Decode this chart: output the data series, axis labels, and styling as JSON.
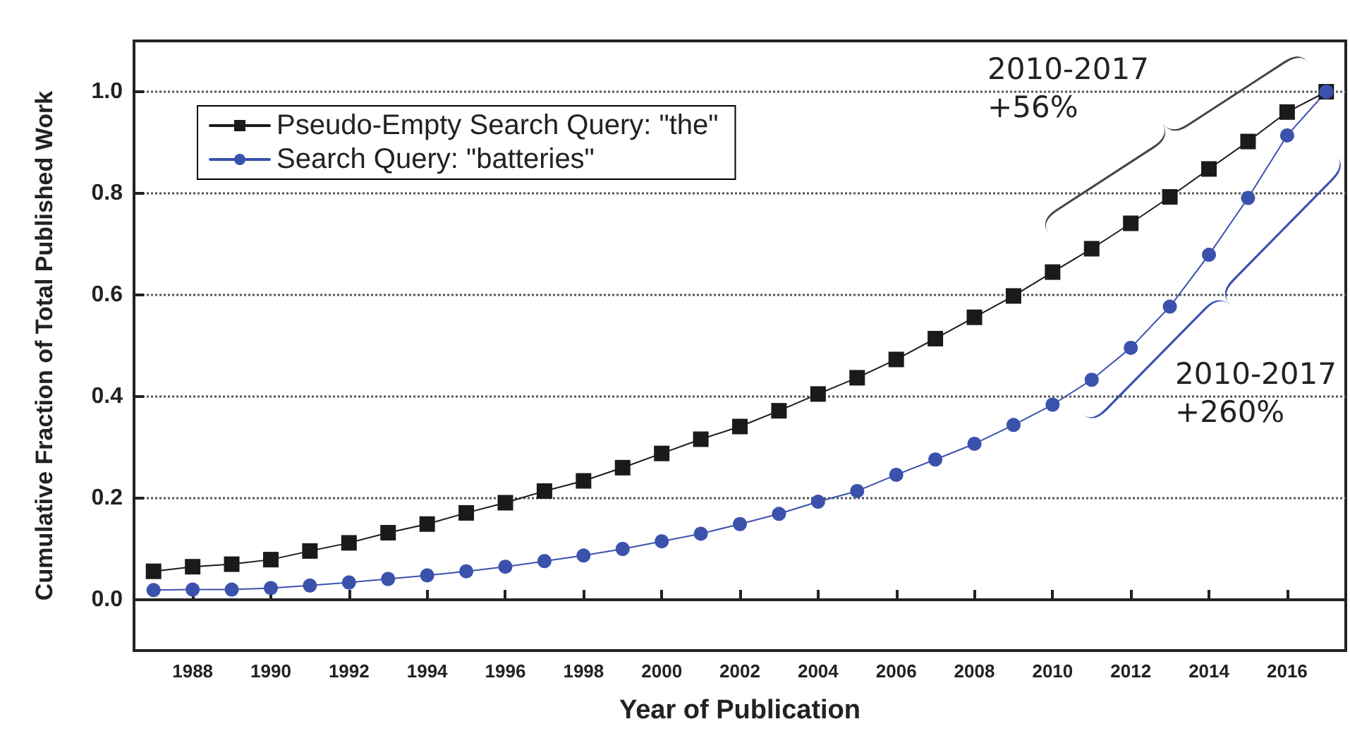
{
  "chart_data": {
    "type": "line",
    "xlabel": "Year of Publication",
    "ylabel": "Cumulative Fraction of Total Published Work",
    "x": [
      1987,
      1988,
      1989,
      1990,
      1991,
      1992,
      1993,
      1994,
      1995,
      1996,
      1997,
      1998,
      1999,
      2000,
      2001,
      2002,
      2003,
      2004,
      2005,
      2006,
      2007,
      2008,
      2009,
      2010,
      2011,
      2012,
      2013,
      2014,
      2015,
      2016,
      2017
    ],
    "series": [
      {
        "name": "Pseudo-Empty Search Query: \"the\"",
        "color": "#1a1a1a",
        "marker": "square",
        "values": [
          0.056,
          0.065,
          0.07,
          0.079,
          0.096,
          0.112,
          0.132,
          0.149,
          0.171,
          0.191,
          0.214,
          0.234,
          0.26,
          0.288,
          0.316,
          0.341,
          0.372,
          0.405,
          0.437,
          0.473,
          0.514,
          0.556,
          0.598,
          0.645,
          0.691,
          0.741,
          0.793,
          0.848,
          0.902,
          0.96,
          1.0
        ]
      },
      {
        "name": "Search Query: \"batteries\"",
        "color": "#3b52ad",
        "marker": "circle",
        "values": [
          0.019,
          0.02,
          0.02,
          0.023,
          0.028,
          0.034,
          0.041,
          0.048,
          0.056,
          0.065,
          0.076,
          0.087,
          0.1,
          0.115,
          0.13,
          0.149,
          0.169,
          0.193,
          0.214,
          0.246,
          0.276,
          0.307,
          0.344,
          0.384,
          0.433,
          0.496,
          0.577,
          0.679,
          0.791,
          0.914,
          1.0
        ]
      }
    ],
    "xlim": [
      1986.5,
      2017.5
    ],
    "xticks": [
      1988,
      1990,
      1992,
      1994,
      1996,
      1998,
      2000,
      2002,
      2004,
      2006,
      2008,
      2010,
      2012,
      2014,
      2016
    ],
    "ylim": [
      -0.1,
      1.1
    ],
    "yticks": [
      {
        "value": 0,
        "label": "0.0"
      },
      {
        "value": 0.2,
        "label": "0.2"
      },
      {
        "value": 0.4,
        "label": "0.4"
      },
      {
        "value": 0.6,
        "label": "0.6"
      },
      {
        "value": 0.8,
        "label": "0.8"
      },
      {
        "value": 1.0,
        "label": "1.0"
      }
    ],
    "grid": "y",
    "legend": "top left",
    "line_style": "solid",
    "annotations": [
      "2010-2017 +56%",
      "2010-2017 +260%"
    ]
  }
}
